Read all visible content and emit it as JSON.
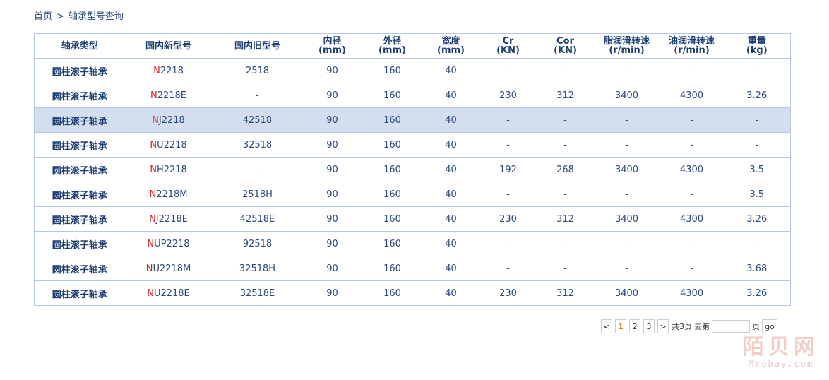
{
  "breadcrumb": {
    "home": "首页",
    "separator": ">",
    "current": "轴承型号查询"
  },
  "table": {
    "headers": [
      [
        "轴承类型"
      ],
      [
        "国内新型号"
      ],
      [
        "国内旧型号"
      ],
      [
        "内径",
        "(mm)"
      ],
      [
        "外径",
        "(mm)"
      ],
      [
        "宽度",
        "(mm)"
      ],
      [
        "Cr",
        "(KN)"
      ],
      [
        "Cor",
        "(KN)"
      ],
      [
        "脂润滑转速",
        "(r/min)"
      ],
      [
        "油润滑转速",
        "(r/min)"
      ],
      [
        "重量",
        "(kg)"
      ]
    ],
    "rows": [
      {
        "type": "圆柱滚子轴承",
        "model_prefix": "N",
        "model_rest": "2218",
        "old": "2518",
        "d": "90",
        "D": "160",
        "B": "40",
        "cr": "-",
        "cor": "-",
        "grease": "-",
        "oil": "-",
        "weight": "-"
      },
      {
        "type": "圆柱滚子轴承",
        "model_prefix": "N",
        "model_rest": "2218E",
        "old": "-",
        "d": "90",
        "D": "160",
        "B": "40",
        "cr": "230",
        "cor": "312",
        "grease": "3400",
        "oil": "4300",
        "weight": "3.26"
      },
      {
        "type": "圆柱滚子轴承",
        "model_prefix": "N",
        "model_rest": "J2218",
        "old": "42518",
        "d": "90",
        "D": "160",
        "B": "40",
        "cr": "-",
        "cor": "-",
        "grease": "-",
        "oil": "-",
        "weight": "-",
        "highlighted": true
      },
      {
        "type": "圆柱滚子轴承",
        "model_prefix": "N",
        "model_rest": "U2218",
        "old": "32518",
        "d": "90",
        "D": "160",
        "B": "40",
        "cr": "-",
        "cor": "-",
        "grease": "-",
        "oil": "-",
        "weight": "-"
      },
      {
        "type": "圆柱滚子轴承",
        "model_prefix": "N",
        "model_rest": "H2218",
        "old": "-",
        "d": "90",
        "D": "160",
        "B": "40",
        "cr": "192",
        "cor": "268",
        "grease": "3400",
        "oil": "4300",
        "weight": "3.5"
      },
      {
        "type": "圆柱滚子轴承",
        "model_prefix": "N",
        "model_rest": "2218M",
        "old": "2518H",
        "d": "90",
        "D": "160",
        "B": "40",
        "cr": "-",
        "cor": "-",
        "grease": "-",
        "oil": "-",
        "weight": "3.5"
      },
      {
        "type": "圆柱滚子轴承",
        "model_prefix": "N",
        "model_rest": "J2218E",
        "old": "42518E",
        "d": "90",
        "D": "160",
        "B": "40",
        "cr": "230",
        "cor": "312",
        "grease": "3400",
        "oil": "4300",
        "weight": "3.26"
      },
      {
        "type": "圆柱滚子轴承",
        "model_prefix": "N",
        "model_rest": "UP2218",
        "old": "92518",
        "d": "90",
        "D": "160",
        "B": "40",
        "cr": "-",
        "cor": "-",
        "grease": "-",
        "oil": "-",
        "weight": "-"
      },
      {
        "type": "圆柱滚子轴承",
        "model_prefix": "N",
        "model_rest": "U2218M",
        "old": "32518H",
        "d": "90",
        "D": "160",
        "B": "40",
        "cr": "-",
        "cor": "-",
        "grease": "-",
        "oil": "-",
        "weight": "3.68"
      },
      {
        "type": "圆柱滚子轴承",
        "model_prefix": "N",
        "model_rest": "U2218E",
        "old": "32518E",
        "d": "90",
        "D": "160",
        "B": "40",
        "cr": "230",
        "cor": "312",
        "grease": "3400",
        "oil": "4300",
        "weight": "3.26"
      }
    ]
  },
  "pagination": {
    "prev": "<",
    "pages": [
      "1",
      "2",
      "3"
    ],
    "current_page": "1",
    "next": ">",
    "total_text": "共3页",
    "goto_text": "去第",
    "goto_value": "",
    "page_suffix": "页",
    "go_label": "go"
  },
  "watermark": {
    "cn": "陌贝网",
    "en": "Mrobay.com"
  },
  "colors": {
    "accent_red": "#e02020",
    "highlight_row": "#d3deef",
    "text_blue": "#2c4a7e",
    "border": "#b6c8e0",
    "active_page": "#e0801a"
  }
}
